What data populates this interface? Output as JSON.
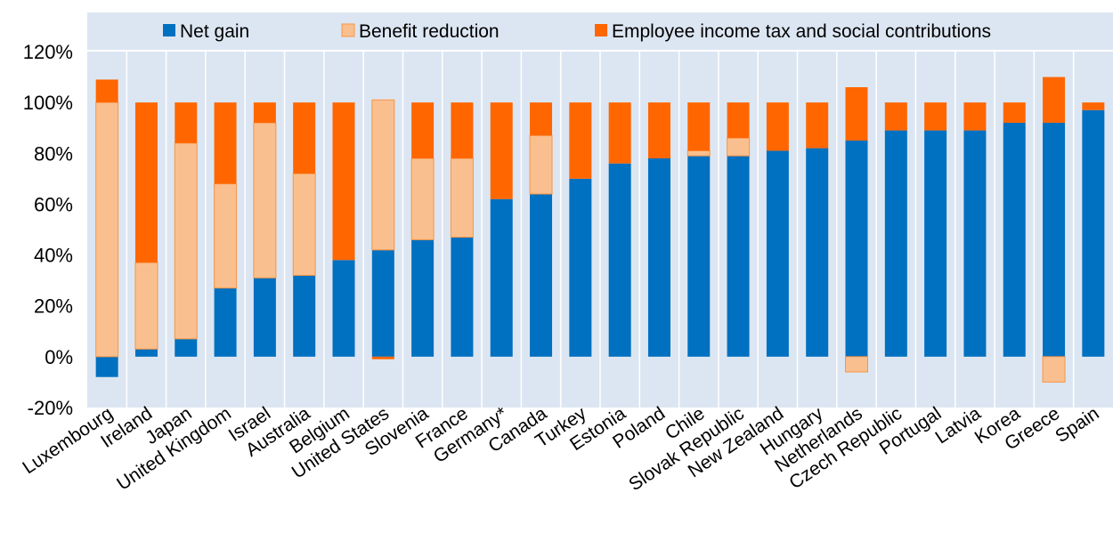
{
  "chart_data": {
    "type": "bar",
    "stacked": true,
    "title": "",
    "xlabel": "",
    "ylabel": "",
    "ylim": [
      -0.2,
      1.2
    ],
    "yticks": [
      "-20%",
      "0%",
      "20%",
      "40%",
      "60%",
      "80%",
      "100%",
      "120%"
    ],
    "grid": "vertical",
    "legend_position": "top",
    "categories": [
      "Luxembourg",
      "Ireland",
      "Japan",
      "United Kingdom",
      "Israel",
      "Australia",
      "Belgium",
      "United States",
      "Slovenia",
      "France",
      "Germany*",
      "Canada",
      "Turkey",
      "Estonia",
      "Poland",
      "Chile",
      "Slovak Republic",
      "New Zealand",
      "Hungary",
      "Netherlands",
      "Czech Republic",
      "Portugal",
      "Latvia",
      "Korea",
      "Greece",
      "Spain"
    ],
    "series": [
      {
        "name": "Net gain",
        "color": "#0070C0",
        "values": [
          -0.08,
          0.03,
          0.07,
          0.27,
          0.31,
          0.32,
          0.38,
          0.42,
          0.46,
          0.47,
          0.62,
          0.64,
          0.7,
          0.76,
          0.78,
          0.79,
          0.79,
          0.81,
          0.82,
          0.85,
          0.89,
          0.89,
          0.89,
          0.92,
          0.92,
          0.97
        ]
      },
      {
        "name": "Benefit reduction",
        "color": "#FABF8F",
        "values": [
          1.0,
          0.34,
          0.77,
          0.41,
          0.61,
          0.4,
          0.0,
          0.59,
          0.32,
          0.31,
          0.0,
          0.23,
          0.0,
          0.0,
          0.0,
          0.02,
          0.07,
          0.0,
          0.0,
          -0.06,
          0.0,
          0.0,
          0.0,
          0.0,
          -0.1,
          0.0
        ]
      },
      {
        "name": "Employee income tax and social contributions",
        "color": "#FF6600",
        "values": [
          0.09,
          0.63,
          0.16,
          0.32,
          0.08,
          0.28,
          0.62,
          -0.01,
          0.22,
          0.22,
          0.38,
          0.13,
          0.3,
          0.24,
          0.22,
          0.19,
          0.14,
          0.19,
          0.18,
          0.21,
          0.11,
          0.11,
          0.11,
          0.08,
          0.18,
          0.03
        ]
      }
    ]
  }
}
